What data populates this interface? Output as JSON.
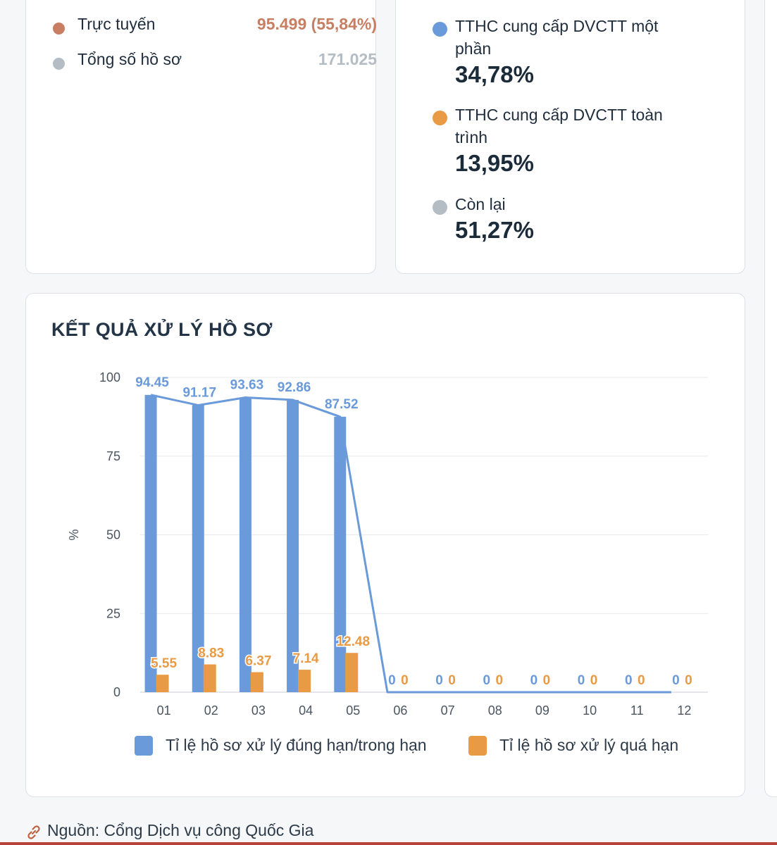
{
  "left_card": {
    "rows": [
      {
        "label": "Trực tuyến",
        "value": "95.499 (55,84%)",
        "dot_color": "#c87e62",
        "value_color": "#c87e62"
      },
      {
        "label": "Tổng số hồ sơ",
        "value": "171.025",
        "dot_color": "#b4bcc4",
        "value_color": "#b4bcc4"
      }
    ]
  },
  "right_card": {
    "legend": [
      {
        "label": "TTHC cung cấp DVCTT một phần",
        "pct": "34,78%",
        "color": "#6a9ad9"
      },
      {
        "label": "TTHC cung cấp DVCTT toàn trình",
        "pct": "13,95%",
        "color": "#e99a45"
      },
      {
        "label": "Còn lại",
        "pct": "51,27%",
        "color": "#b4bcc4"
      }
    ]
  },
  "chart_title": "KẾT QUẢ XỬ LÝ HỒ SƠ",
  "chart_data": {
    "type": "bar",
    "title": "KẾT QUẢ XỬ LÝ HỒ SƠ",
    "xlabel": "",
    "ylabel": "%",
    "ylim": [
      0,
      100
    ],
    "yticks": [
      0,
      25,
      50,
      75,
      100
    ],
    "grid": true,
    "legend_position": "bottom",
    "categories": [
      "01",
      "02",
      "03",
      "04",
      "05",
      "06",
      "07",
      "08",
      "09",
      "10",
      "11",
      "12"
    ],
    "series": [
      {
        "name": "Tỉ lệ hồ sơ xử lý đúng hạn/trong hạn",
        "color": "#6a9ad9",
        "values": [
          94.45,
          91.17,
          93.63,
          92.86,
          87.52,
          0,
          0,
          0,
          0,
          0,
          0,
          0
        ],
        "labels": [
          "94.45",
          "91.17",
          "93.63",
          "92.86",
          "87.52",
          "0",
          "0",
          "0",
          "0",
          "0",
          "0",
          "0"
        ],
        "line_overlay": true
      },
      {
        "name": "Tỉ lệ hồ sơ xử lý quá hạn",
        "color": "#e99a45",
        "values": [
          5.55,
          8.83,
          6.37,
          7.14,
          12.48,
          0,
          0,
          0,
          0,
          0,
          0,
          0
        ],
        "labels": [
          "5.55",
          "8.83",
          "6.37",
          "7.14",
          "12.48",
          "0",
          "0",
          "0",
          "0",
          "0",
          "0",
          "0"
        ]
      }
    ]
  },
  "footer": {
    "source_text": "Nguồn: Cổng Dịch vụ công Quốc Gia",
    "icon": "link-icon"
  }
}
